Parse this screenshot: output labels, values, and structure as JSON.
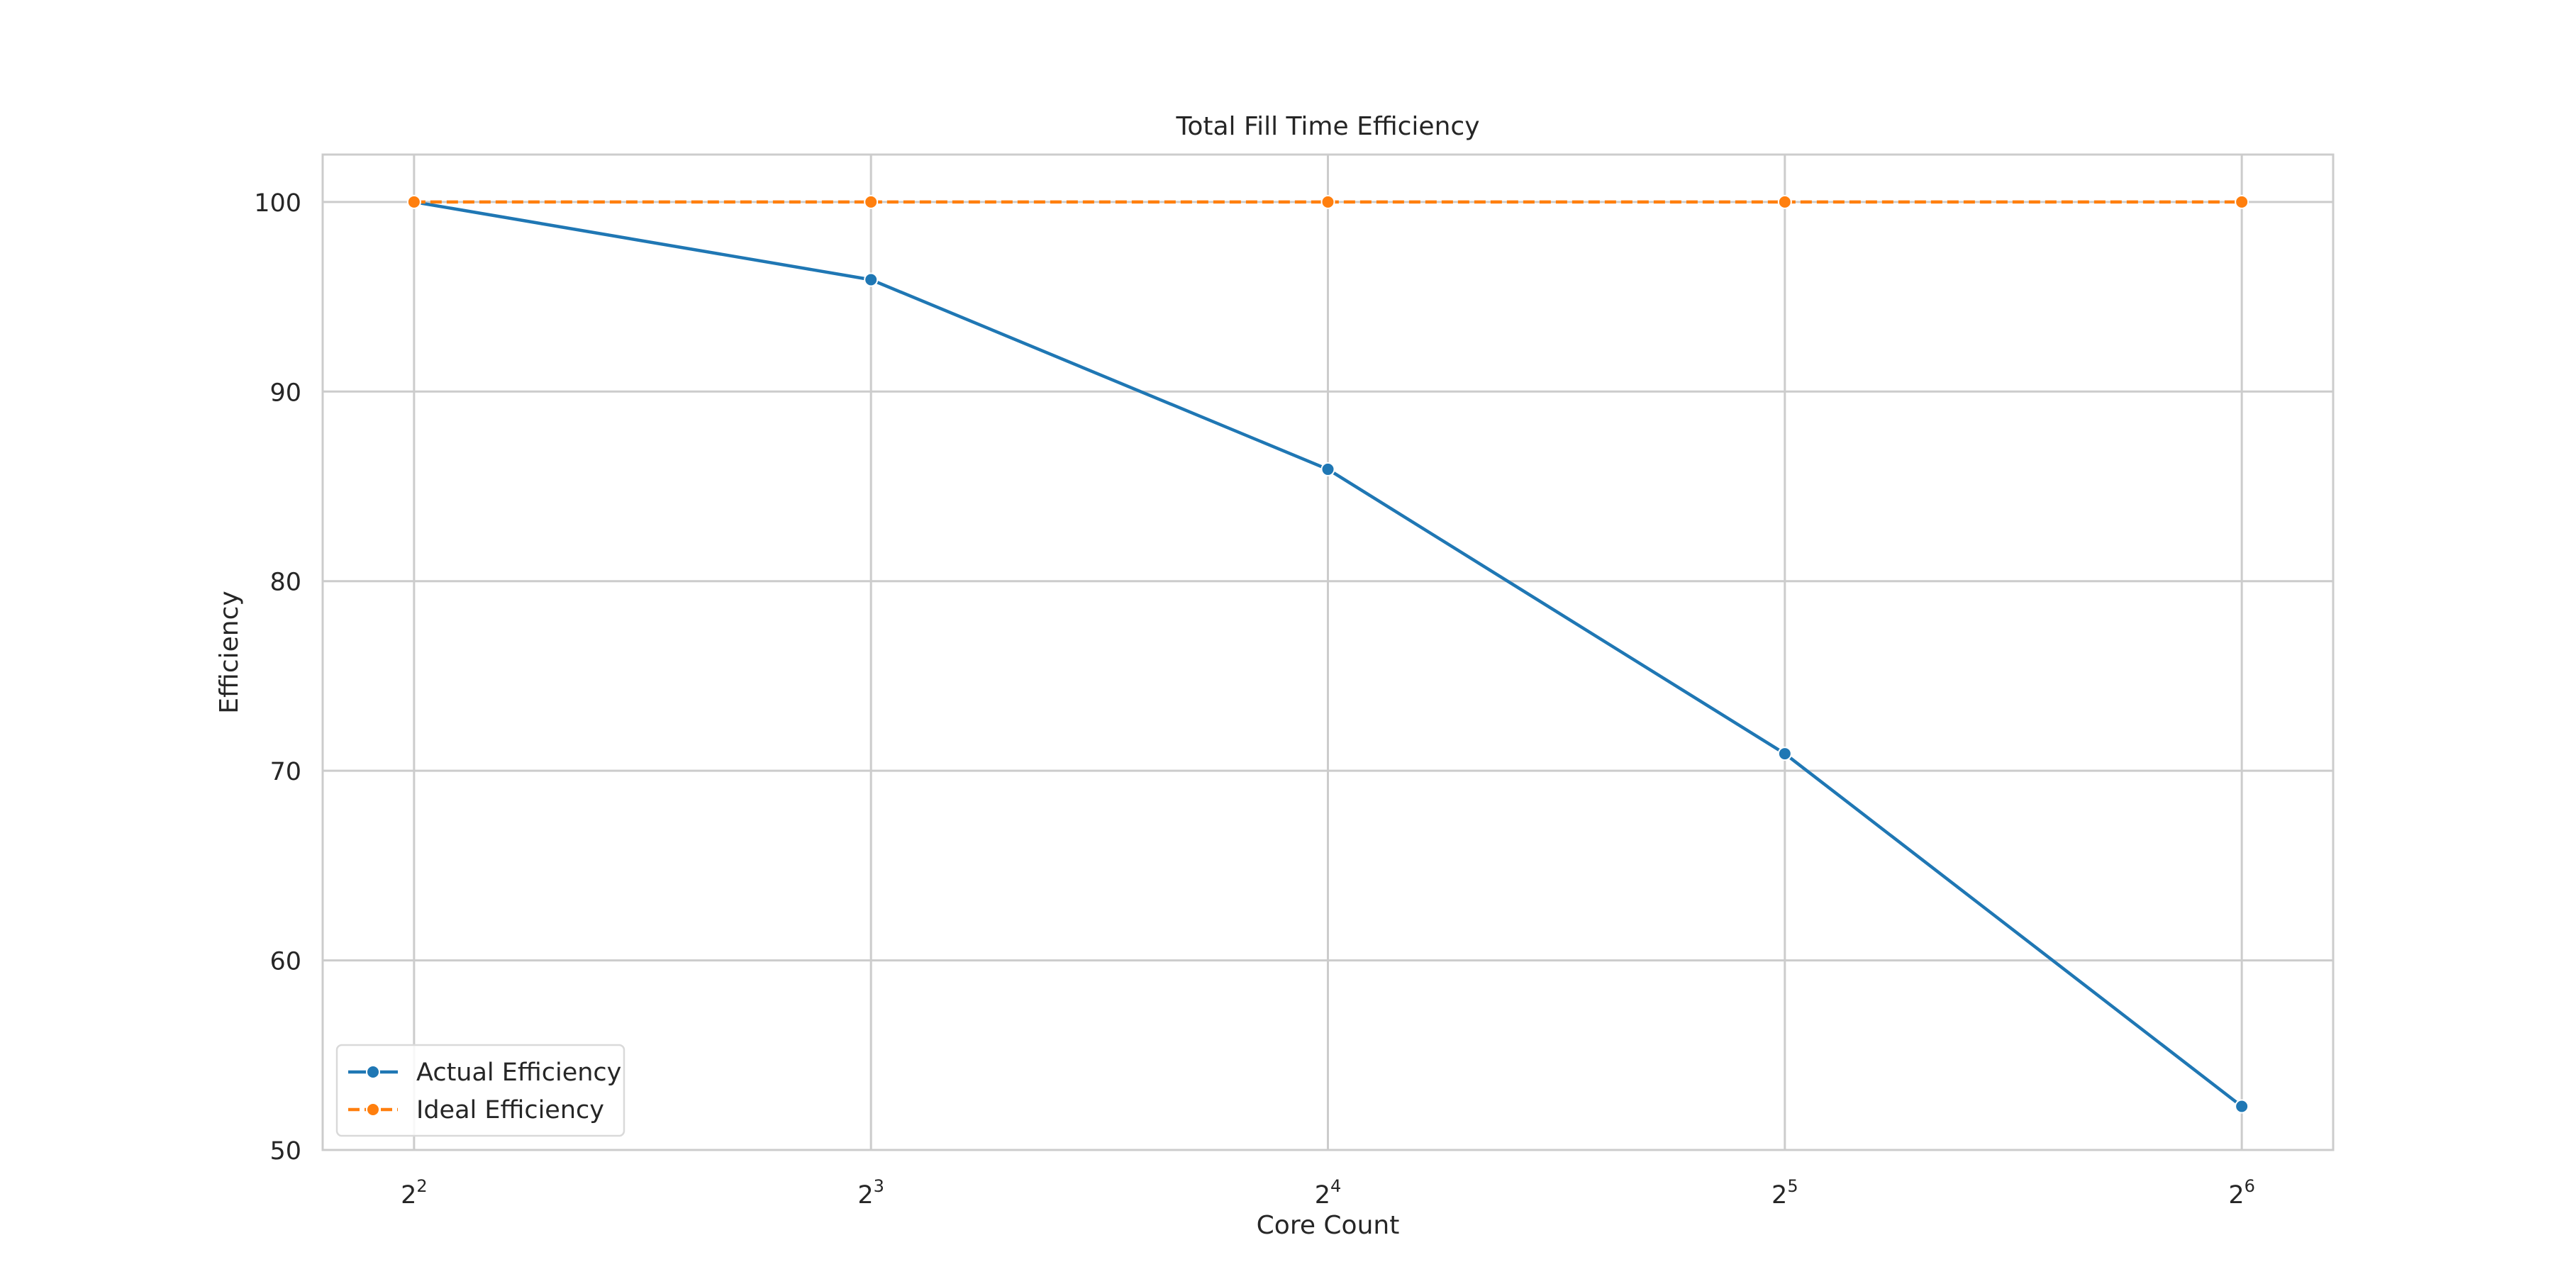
{
  "chart_data": {
    "type": "line",
    "title": "Total Fill Time Efficiency",
    "xlabel": "Core Count",
    "ylabel": "Efficiency",
    "x": [
      4,
      8,
      16,
      32,
      64
    ],
    "x_scale": "log2",
    "x_tick_labels": [
      {
        "base": "2",
        "exp": "2"
      },
      {
        "base": "2",
        "exp": "3"
      },
      {
        "base": "2",
        "exp": "4"
      },
      {
        "base": "2",
        "exp": "5"
      },
      {
        "base": "2",
        "exp": "6"
      }
    ],
    "ylim": [
      50,
      102.5
    ],
    "y_ticks": [
      50,
      60,
      70,
      80,
      90,
      100
    ],
    "grid": true,
    "legend_position": "lower-left",
    "series": [
      {
        "name": "Actual Efficiency",
        "values": [
          100,
          95.9,
          85.9,
          70.9,
          52.3
        ],
        "color": "#1f77b4",
        "line_style": "solid",
        "marker": "circle"
      },
      {
        "name": "Ideal Efficiency",
        "values": [
          100,
          100,
          100,
          100,
          100
        ],
        "color": "#ff7f0e",
        "line_style": "dashed",
        "marker": "circle"
      }
    ]
  }
}
